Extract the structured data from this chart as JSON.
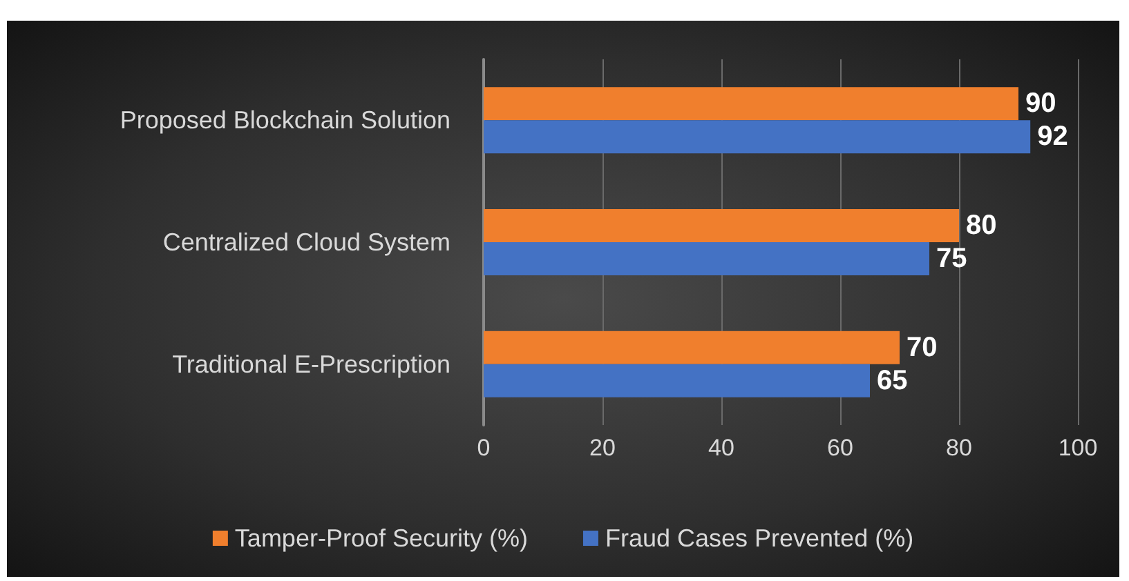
{
  "chart_data": {
    "type": "bar",
    "orientation": "horizontal",
    "categories": [
      "Proposed Blockchain Solution",
      "Centralized Cloud System",
      "Traditional E-Prescription"
    ],
    "series": [
      {
        "name": "Tamper-Proof Security (%)",
        "color": "#f07f2d",
        "values": [
          90,
          80,
          70
        ]
      },
      {
        "name": "Fraud Cases Prevented (%)",
        "color": "#4472c4",
        "values": [
          92,
          75,
          65
        ]
      }
    ],
    "xlim": [
      0,
      100
    ],
    "xticks": [
      0,
      20,
      40,
      60,
      80,
      100
    ],
    "grid": "x",
    "legend": "bottom",
    "data_labels": true
  }
}
